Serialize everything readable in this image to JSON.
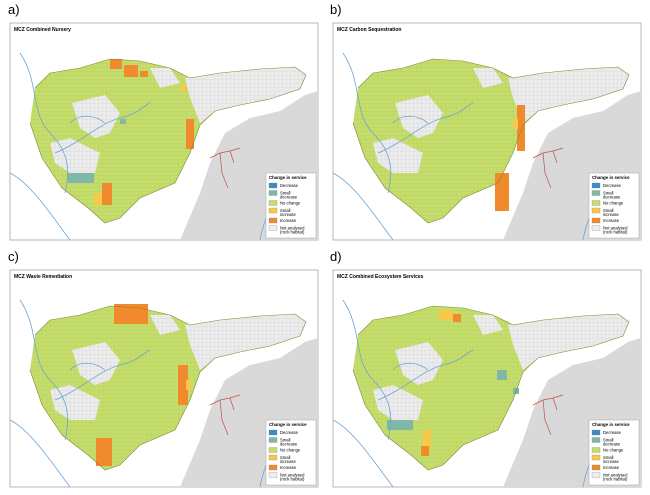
{
  "panels": [
    {
      "label": "a)",
      "title": "MCZ Combined Nursery"
    },
    {
      "label": "b)",
      "title": "MCZ Carbon Sequestration"
    },
    {
      "label": "c)",
      "title": "MCZ  Waste Remediation"
    },
    {
      "label": "d)",
      "title": "MCZ Combined Ecosystem Services"
    }
  ],
  "legend": {
    "title": "Change in service",
    "items": [
      {
        "lines": [
          "Decrease"
        ],
        "color": "#3a8cc4"
      },
      {
        "lines": [
          "Small",
          "decrease"
        ],
        "color": "#7fb8a8"
      },
      {
        "lines": [
          "No change"
        ],
        "color": "#c5dd6a"
      },
      {
        "lines": [
          "Small",
          "increase"
        ],
        "color": "#f7c84a"
      },
      {
        "lines": [
          "Increase"
        ],
        "color": "#f08a2c"
      },
      {
        "lines": [
          "Not analysed",
          "(rock habitat)"
        ],
        "color": "#eeeeee"
      }
    ]
  }
}
